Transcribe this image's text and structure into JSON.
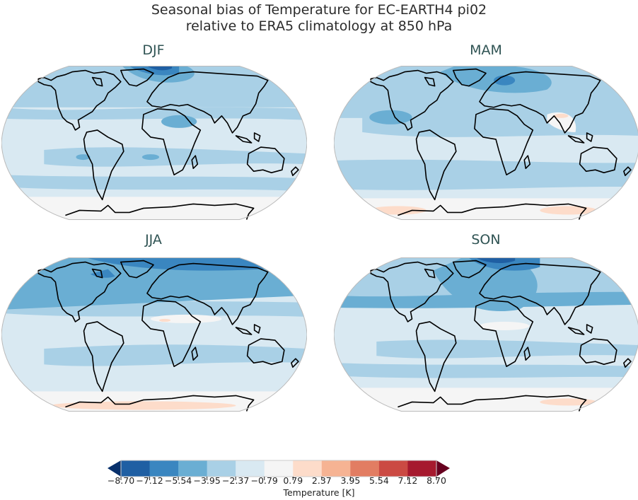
{
  "title": {
    "line1": "Seasonal bias of Temperature for EC-EARTH4 pi02",
    "line2": "relative to ERA5 climatology at 850 hPa"
  },
  "panels": [
    {
      "label": "DJF"
    },
    {
      "label": "MAM"
    },
    {
      "label": "JJA"
    },
    {
      "label": "SON"
    }
  ],
  "colorbar": {
    "label": "Temperature [K]",
    "ticks": [
      "−8.70",
      "−7.12",
      "−5.54",
      "−3.95",
      "−2.37",
      "−0.79",
      "0.79",
      "2.37",
      "3.95",
      "5.54",
      "7.12",
      "8.70"
    ],
    "colors": [
      "#1f5fa3",
      "#3a86c0",
      "#6aaed3",
      "#a9d0e6",
      "#d9e9f2",
      "#f5f5f5",
      "#fddcca",
      "#f6b393",
      "#e27d62",
      "#cb4a43",
      "#a6192e"
    ],
    "under_color": "#08306b",
    "over_color": "#67001f",
    "extend": "both"
  },
  "chart_data": {
    "type": "heatmap",
    "title": "Seasonal bias of Temperature for EC-EARTH4 pi02 relative to ERA5 climatology at 850 hPa",
    "projection": "Robinson (global)",
    "subplots": [
      "DJF",
      "MAM",
      "JJA",
      "SON"
    ],
    "colorbar_label": "Temperature [K]",
    "levels": [
      -8.7,
      -7.12,
      -5.54,
      -3.95,
      -2.37,
      -0.79,
      0.79,
      2.37,
      3.95,
      5.54,
      7.12,
      8.7
    ],
    "value_range": [
      -8.7,
      8.7
    ],
    "extend": "both",
    "cmap": "RdBu_r",
    "observations": {
      "DJF": "Mostly cold bias -0.79 to -3.95 K; strongest -5.54 to -7.12 K over Barents/Greenland Sea and Scandinavia; near zero over Tibet and Southern Ocean",
      "MAM": "Cold bias -0.79 to -3.95 K; strongest -3.95 to -5.54 K over northern Europe/Arctic; small warm patches (0.79 to 2.37 K) over Antarctica and Tibet",
      "JJA": "Cold bias across northern high latitudes -3.95 to -5.54 K (Hudson Bay, Arctic); near zero over Sahara/Tibet; slight warm bias over Antarctica",
      "SON": "Cold bias strongest -5.54 to -7.12 K over Barents Sea/Scandinavia; near zero over Sahel/Africa and Southern Ocean; slight warm bias over Antarctica"
    }
  }
}
